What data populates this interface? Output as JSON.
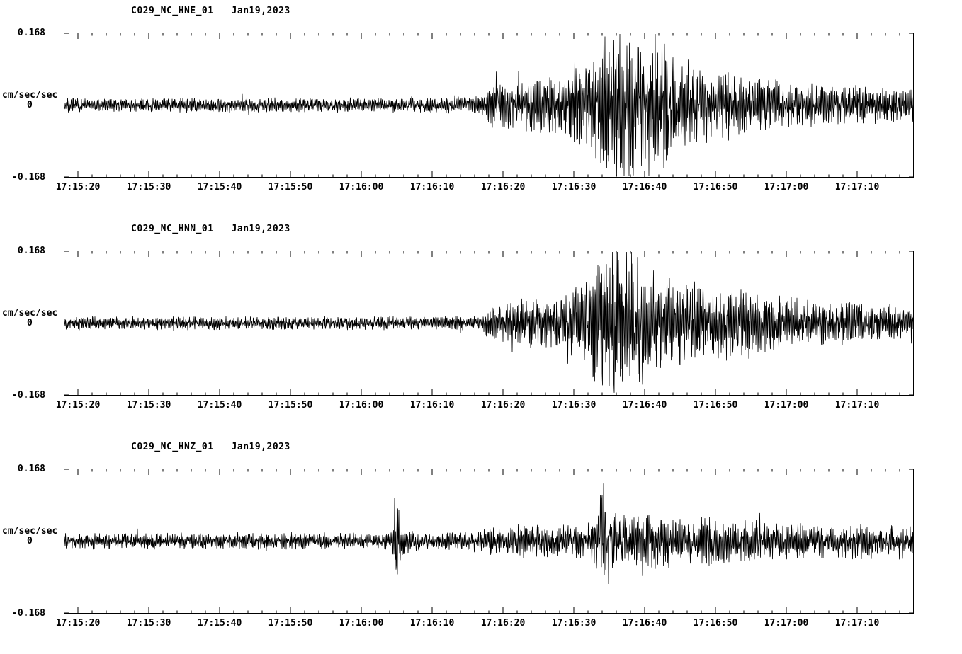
{
  "page": {
    "background_color": "#ffffff",
    "trace_color": "#000000"
  },
  "chart_data": [
    {
      "type": "line",
      "title": "C029_NC_HNE_01   Jan19,2023",
      "station": "C029",
      "network": "NC",
      "channel": "HNE",
      "location": "01",
      "date": "Jan19,2023",
      "ylabel": "cm/sec/sec",
      "ylim": [
        -0.168,
        0.168
      ],
      "ytick_labels": {
        "top": "0.168",
        "zero": "0",
        "bottom": "-0.168"
      },
      "x_tick_labels": [
        "17:15:20",
        "17:15:30",
        "17:15:40",
        "17:15:50",
        "17:16:00",
        "17:16:10",
        "17:16:20",
        "17:16:30",
        "17:16:40",
        "17:16:50",
        "17:17:00",
        "17:17:10"
      ],
      "x_first_tick_sec": 2,
      "x_tick_interval_sec": 10,
      "x_minor_tick_interval_sec": 2,
      "duration_sec": 120,
      "grid": false,
      "seed": 7,
      "envelope": [
        [
          0,
          0.013
        ],
        [
          40,
          0.013
        ],
        [
          52,
          0.014
        ],
        [
          58,
          0.015
        ],
        [
          59.5,
          0.02
        ],
        [
          60.5,
          0.05
        ],
        [
          62,
          0.045
        ],
        [
          64,
          0.04
        ],
        [
          66,
          0.05
        ],
        [
          68,
          0.048
        ],
        [
          70,
          0.055
        ],
        [
          72,
          0.065
        ],
        [
          74,
          0.08
        ],
        [
          75.5,
          0.1
        ],
        [
          77,
          0.13
        ],
        [
          78.5,
          0.165
        ],
        [
          80,
          0.14
        ],
        [
          81.5,
          0.125
        ],
        [
          83,
          0.13
        ],
        [
          84.5,
          0.11
        ],
        [
          86,
          0.095
        ],
        [
          88,
          0.08
        ],
        [
          90,
          0.07
        ],
        [
          93,
          0.06
        ],
        [
          96,
          0.05
        ],
        [
          100,
          0.045
        ],
        [
          104,
          0.04
        ],
        [
          108,
          0.036
        ],
        [
          112,
          0.034
        ],
        [
          116,
          0.032
        ],
        [
          120,
          0.03
        ]
      ]
    },
    {
      "type": "line",
      "title": "C029_NC_HNN_01   Jan19,2023",
      "station": "C029",
      "network": "NC",
      "channel": "HNN",
      "location": "01",
      "date": "Jan19,2023",
      "ylabel": "cm/sec/sec",
      "ylim": [
        -0.168,
        0.168
      ],
      "ytick_labels": {
        "top": "0.168",
        "zero": "0",
        "bottom": "-0.168"
      },
      "x_tick_labels": [
        "17:15:20",
        "17:15:30",
        "17:15:40",
        "17:15:50",
        "17:16:00",
        "17:16:10",
        "17:16:20",
        "17:16:30",
        "17:16:40",
        "17:16:50",
        "17:17:00",
        "17:17:10"
      ],
      "x_first_tick_sec": 2,
      "x_tick_interval_sec": 10,
      "x_minor_tick_interval_sec": 2,
      "duration_sec": 120,
      "grid": false,
      "seed": 13,
      "envelope": [
        [
          0,
          0.012
        ],
        [
          40,
          0.012
        ],
        [
          55,
          0.013
        ],
        [
          59,
          0.014
        ],
        [
          60,
          0.03
        ],
        [
          62,
          0.035
        ],
        [
          64,
          0.04
        ],
        [
          66,
          0.045
        ],
        [
          68,
          0.05
        ],
        [
          70,
          0.05
        ],
        [
          72,
          0.06
        ],
        [
          73.5,
          0.08
        ],
        [
          75,
          0.12
        ],
        [
          76.5,
          0.145
        ],
        [
          78,
          0.13
        ],
        [
          79.5,
          0.11
        ],
        [
          81,
          0.12
        ],
        [
          82.5,
          0.1
        ],
        [
          84,
          0.09
        ],
        [
          86,
          0.08
        ],
        [
          88,
          0.07
        ],
        [
          90,
          0.065
        ],
        [
          92.5,
          0.07
        ],
        [
          95,
          0.06
        ],
        [
          98,
          0.055
        ],
        [
          101,
          0.048
        ],
        [
          105,
          0.042
        ],
        [
          109,
          0.038
        ],
        [
          113,
          0.034
        ],
        [
          120,
          0.03
        ]
      ]
    },
    {
      "type": "line",
      "title": "C029_NC_HNZ_01   Jan19,2023",
      "station": "C029",
      "network": "NC",
      "channel": "HNZ",
      "location": "01",
      "date": "Jan19,2023",
      "ylabel": "cm/sec/sec",
      "ylim": [
        -0.168,
        0.168
      ],
      "ytick_labels": {
        "top": "0.168",
        "zero": "0",
        "bottom": "-0.168"
      },
      "x_tick_labels": [
        "17:15:20",
        "17:15:30",
        "17:15:40",
        "17:15:50",
        "17:16:00",
        "17:16:10",
        "17:16:20",
        "17:16:30",
        "17:16:40",
        "17:16:50",
        "17:17:00",
        "17:17:10"
      ],
      "x_first_tick_sec": 2,
      "x_tick_interval_sec": 10,
      "x_minor_tick_interval_sec": 2,
      "duration_sec": 120,
      "grid": false,
      "seed": 42,
      "envelope": [
        [
          0,
          0.014
        ],
        [
          30,
          0.015
        ],
        [
          44,
          0.015
        ],
        [
          46.2,
          0.016
        ],
        [
          46.7,
          0.075
        ],
        [
          47.3,
          0.06
        ],
        [
          48,
          0.03
        ],
        [
          49,
          0.018
        ],
        [
          52,
          0.016
        ],
        [
          56,
          0.016
        ],
        [
          59,
          0.018
        ],
        [
          60.5,
          0.032
        ],
        [
          62,
          0.028
        ],
        [
          64,
          0.03
        ],
        [
          66,
          0.028
        ],
        [
          68,
          0.03
        ],
        [
          70,
          0.028
        ],
        [
          72,
          0.03
        ],
        [
          74,
          0.032
        ],
        [
          75.3,
          0.05
        ],
        [
          76,
          0.125
        ],
        [
          76.8,
          0.08
        ],
        [
          77.6,
          0.055
        ],
        [
          79,
          0.048
        ],
        [
          81,
          0.045
        ],
        [
          83,
          0.05
        ],
        [
          85,
          0.045
        ],
        [
          87,
          0.042
        ],
        [
          89,
          0.04
        ],
        [
          91,
          0.048
        ],
        [
          93,
          0.042
        ],
        [
          95,
          0.038
        ],
        [
          98,
          0.036
        ],
        [
          101,
          0.034
        ],
        [
          105,
          0.032
        ],
        [
          109,
          0.03
        ],
        [
          113,
          0.032
        ],
        [
          117,
          0.028
        ],
        [
          120,
          0.027
        ]
      ]
    }
  ]
}
